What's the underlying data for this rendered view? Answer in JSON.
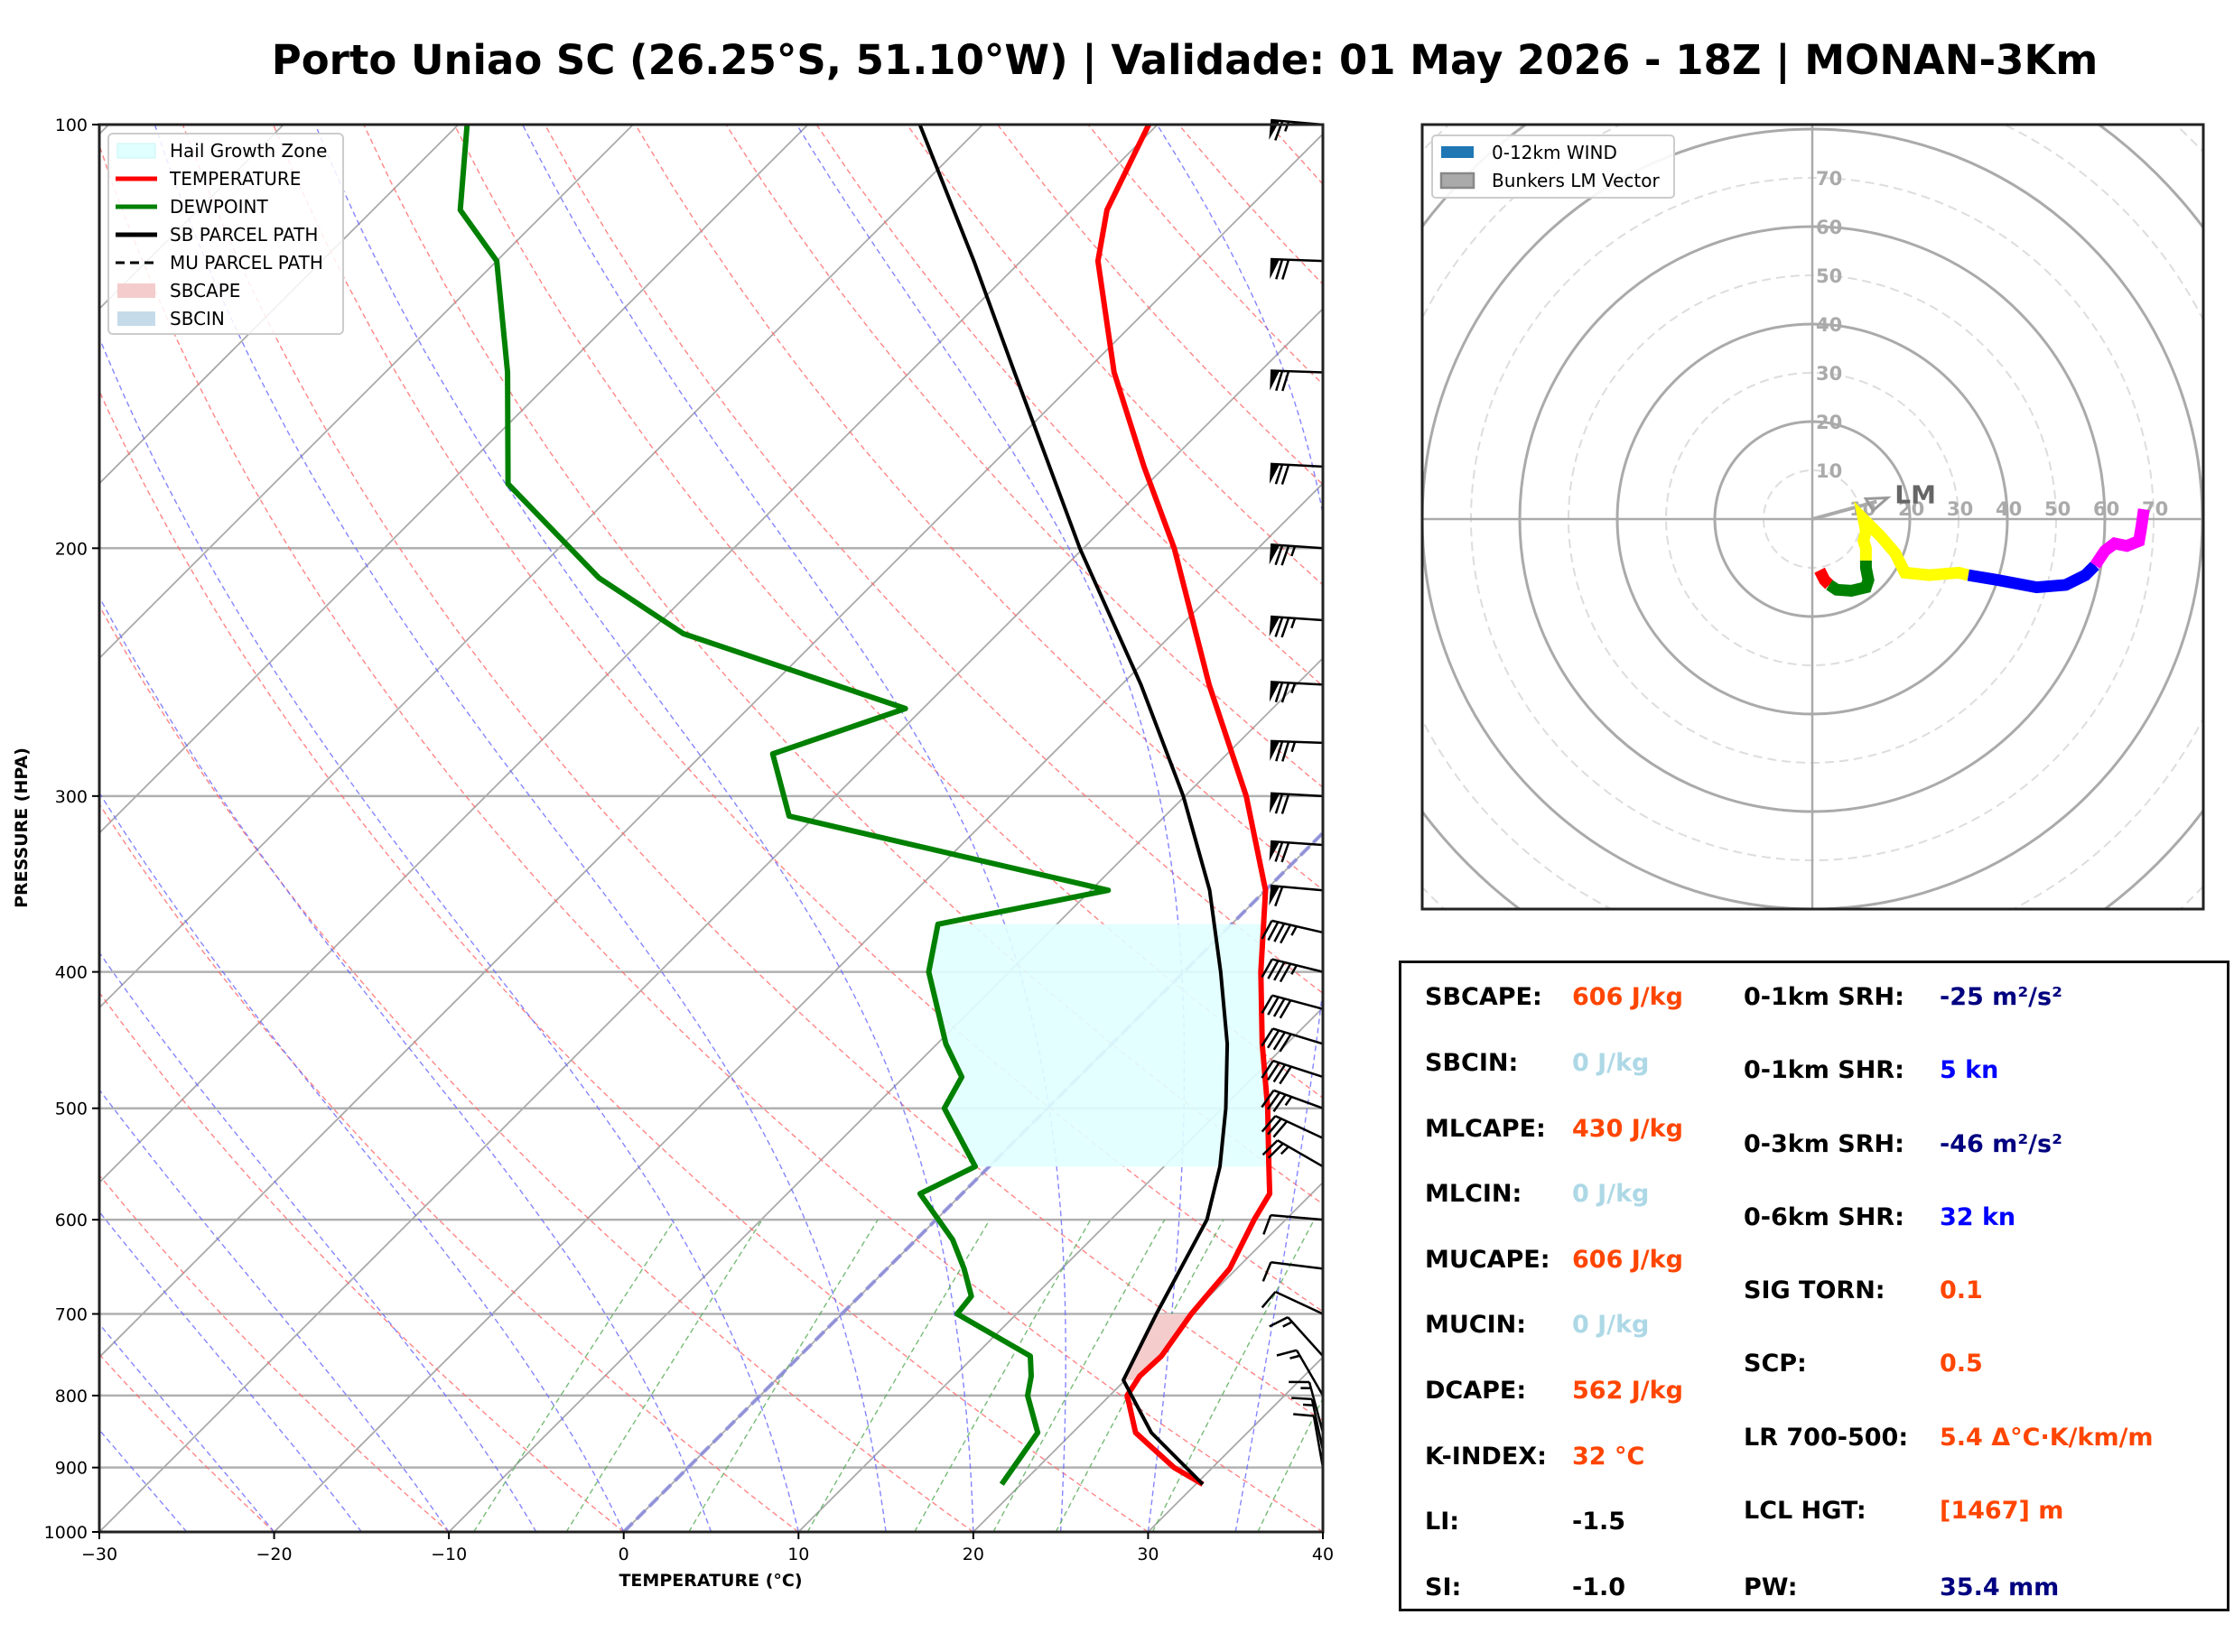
{
  "title": "Porto Uniao SC (26.25°S, 51.10°W) | Validade: 01 May 2026 - 18Z | MONAN-3Km",
  "colors": {
    "temperature": "#ff0000",
    "dewpoint": "#008000",
    "parcel": "#000000",
    "sbcape_fill": "#f4cccc",
    "sbcin_fill": "#c6dbea",
    "hail_zone": "#e0ffff",
    "dry_adiabat": "#ff6666",
    "moist_adiabat": "#6666ff",
    "mixing_ratio": "#55aa55",
    "isotherm": "#aaaaaa",
    "value_orange": "#ff4500",
    "value_lightblue": "#add8e6",
    "value_navy": "#000080",
    "value_blue": "#0000ff",
    "value_black": "#000000"
  },
  "chart_data": [
    {
      "type": "line",
      "name": "skew-t",
      "xlabel": "TEMPERATURE (°C)",
      "ylabel": "PRESSURE (HPA)",
      "xlim": [
        -30,
        40
      ],
      "ylim": [
        1000,
        100
      ],
      "yscale": "log",
      "xticks": [
        "−30",
        "−20",
        "−10",
        "0",
        "10",
        "20",
        "30",
        "40"
      ],
      "xtick_values": [
        -30,
        -20,
        -10,
        0,
        10,
        20,
        30,
        40
      ],
      "yticks": [
        "100",
        "200",
        "300",
        "400",
        "500",
        "600",
        "700",
        "800",
        "900",
        "1000"
      ],
      "ytick_values": [
        100,
        200,
        300,
        400,
        500,
        600,
        700,
        800,
        900,
        1000
      ],
      "grid": true,
      "legend_position": "top-left",
      "legend": [
        {
          "label": "Hail Growth Zone",
          "kind": "patch",
          "color_key": "hail_zone"
        },
        {
          "label": "TEMPERATURE",
          "kind": "line",
          "color_key": "temperature"
        },
        {
          "label": "DEWPOINT",
          "kind": "line",
          "color_key": "dewpoint"
        },
        {
          "label": "SB PARCEL PATH",
          "kind": "line",
          "color_key": "parcel"
        },
        {
          "label": "MU PARCEL PATH",
          "kind": "dashed",
          "color_key": "parcel"
        },
        {
          "label": "SBCAPE",
          "kind": "patch",
          "color_key": "sbcape_fill"
        },
        {
          "label": "SBCIN",
          "kind": "patch",
          "color_key": "sbcin_fill"
        }
      ],
      "series": [
        {
          "name": "TEMPERATURE",
          "points": [
            [
              925,
              30.4
            ],
            [
              900,
              27.8
            ],
            [
              850,
              23.6
            ],
            [
              800,
              21.0
            ],
            [
              775,
              20.6
            ],
            [
              750,
              20.7
            ],
            [
              700,
              20.0
            ],
            [
              650,
              19.6
            ],
            [
              600,
              18.2
            ],
            [
              575,
              17.6
            ],
            [
              550,
              16.0
            ],
            [
              500,
              12.6
            ],
            [
              450,
              8.6
            ],
            [
              400,
              4.4
            ],
            [
              350,
              0.0
            ],
            [
              300,
              -6.5
            ],
            [
              250,
              -15.0
            ],
            [
              200,
              -24.8
            ],
            [
              175,
              -31.2
            ],
            [
              150,
              -38.3
            ],
            [
              125,
              -45.6
            ],
            [
              115,
              -48.0
            ],
            [
              100,
              -50.5
            ]
          ]
        },
        {
          "name": "DEWPOINT",
          "points": [
            [
              925,
              18.9
            ],
            [
              850,
              18.0
            ],
            [
              800,
              15.3
            ],
            [
              775,
              14.4
            ],
            [
              750,
              13.2
            ],
            [
              700,
              6.6
            ],
            [
              680,
              6.4
            ],
            [
              650,
              4.4
            ],
            [
              620,
              2.1
            ],
            [
              575,
              -2.4
            ],
            [
              550,
              -0.8
            ],
            [
              500,
              -5.9
            ],
            [
              475,
              -6.7
            ],
            [
              450,
              -9.5
            ],
            [
              400,
              -14.6
            ],
            [
              370,
              -16.8
            ],
            [
              350,
              -9.0
            ],
            [
              310,
              -31.5
            ],
            [
              280,
              -36.0
            ],
            [
              260,
              -31.0
            ],
            [
              230,
              -48.0
            ],
            [
              210,
              -56.0
            ],
            [
              180,
              -66.6
            ],
            [
              150,
              -73.0
            ],
            [
              125,
              -80.0
            ],
            [
              115,
              -85.0
            ],
            [
              100,
              -89.5
            ]
          ]
        },
        {
          "name": "SB PARCEL PATH",
          "points": [
            [
              925,
              30.4
            ],
            [
              850,
              24.5
            ],
            [
              780,
              19.9
            ],
            [
              700,
              18.0
            ],
            [
              600,
              15.5
            ],
            [
              550,
              13.2
            ],
            [
              500,
              10.2
            ],
            [
              450,
              6.6
            ],
            [
              400,
              2.1
            ],
            [
              350,
              -3.2
            ],
            [
              300,
              -10.1
            ],
            [
              250,
              -18.9
            ],
            [
              200,
              -30.2
            ],
            [
              175,
              -36.6
            ],
            [
              150,
              -44.0
            ],
            [
              125,
              -52.7
            ],
            [
              100,
              -63.6
            ]
          ]
        }
      ],
      "hail_growth_zone": {
        "p_bottom": 550,
        "p_top": 370,
        "t_range": [
          -30,
          -10
        ]
      },
      "wind_barbs": [
        {
          "p": 100,
          "dir": 275,
          "speed_kn": 65
        },
        {
          "p": 125,
          "dir": 272,
          "speed_kn": 70
        },
        {
          "p": 150,
          "dir": 272,
          "speed_kn": 70
        },
        {
          "p": 175,
          "dir": 273,
          "speed_kn": 70
        },
        {
          "p": 200,
          "dir": 274,
          "speed_kn": 75
        },
        {
          "p": 225,
          "dir": 274,
          "speed_kn": 75
        },
        {
          "p": 250,
          "dir": 273,
          "speed_kn": 75
        },
        {
          "p": 275,
          "dir": 272,
          "speed_kn": 75
        },
        {
          "p": 300,
          "dir": 273,
          "speed_kn": 70
        },
        {
          "p": 325,
          "dir": 274,
          "speed_kn": 70
        },
        {
          "p": 350,
          "dir": 275,
          "speed_kn": 60
        },
        {
          "p": 375,
          "dir": 283,
          "speed_kn": 45
        },
        {
          "p": 400,
          "dir": 284,
          "speed_kn": 45
        },
        {
          "p": 425,
          "dir": 285,
          "speed_kn": 40
        },
        {
          "p": 450,
          "dir": 287,
          "speed_kn": 40
        },
        {
          "p": 475,
          "dir": 288,
          "speed_kn": 40
        },
        {
          "p": 500,
          "dir": 290,
          "speed_kn": 35
        },
        {
          "p": 525,
          "dir": 295,
          "speed_kn": 30
        },
        {
          "p": 550,
          "dir": 300,
          "speed_kn": 25
        },
        {
          "p": 600,
          "dir": 275,
          "speed_kn": 10
        },
        {
          "p": 650,
          "dir": 277,
          "speed_kn": 10
        },
        {
          "p": 700,
          "dir": 295,
          "speed_kn": 10
        },
        {
          "p": 750,
          "dir": 318,
          "speed_kn": 15
        },
        {
          "p": 800,
          "dir": 330,
          "speed_kn": 15
        },
        {
          "p": 850,
          "dir": 345,
          "speed_kn": 15
        },
        {
          "p": 875,
          "dir": 348,
          "speed_kn": 15
        },
        {
          "p": 900,
          "dir": 350,
          "speed_kn": 10
        }
      ]
    },
    {
      "type": "line",
      "name": "hodograph",
      "legend_position": "top-left",
      "legend": [
        {
          "label": "0-12km WIND",
          "color": "#1f77b4"
        },
        {
          "label": "Bunkers LM Vector",
          "color": "#aaaaaa"
        }
      ],
      "ring_labels": [
        "10",
        "20",
        "30",
        "40",
        "50",
        "60",
        "70"
      ],
      "ring_values": [
        10,
        20,
        30,
        40,
        50,
        60,
        70
      ],
      "xlim": [
        -80,
        80
      ],
      "ylim": [
        -80,
        80
      ],
      "bunkers_lm": {
        "label": "LM",
        "u": 11,
        "v": 3
      },
      "segments": [
        {
          "color": "#ff0000",
          "points": [
            [
              1.5,
              -10.5
            ],
            [
              2.5,
              -12.5
            ],
            [
              3.5,
              -13.5
            ]
          ]
        },
        {
          "color": "#008000",
          "points": [
            [
              3.5,
              -13.5
            ],
            [
              5.0,
              -14.5
            ],
            [
              8.0,
              -14.7
            ],
            [
              11.0,
              -14.0
            ],
            [
              11.5,
              -12.5
            ],
            [
              11.0,
              -10.0
            ],
            [
              11.0,
              -8.5
            ]
          ]
        },
        {
          "color": "#ffff00",
          "points": [
            [
              11.0,
              -8.5
            ],
            [
              11.0,
              -6.0
            ],
            [
              10.5,
              -4.5
            ],
            [
              11.0,
              -2.5
            ],
            [
              10.5,
              0.0
            ],
            [
              14.0,
              -3.5
            ],
            [
              17.0,
              -7.0
            ],
            [
              19.0,
              -11.0
            ],
            [
              24.0,
              -11.5
            ],
            [
              30.0,
              -11.0
            ],
            [
              32.0,
              -11.5
            ]
          ]
        },
        {
          "color": "#0000ff",
          "points": [
            [
              32.0,
              -11.5
            ],
            [
              38.0,
              -12.5
            ],
            [
              46.0,
              -14.0
            ],
            [
              52.0,
              -13.5
            ],
            [
              56.0,
              -11.5
            ],
            [
              58.0,
              -9.5
            ]
          ]
        },
        {
          "color": "#ff00ff",
          "points": [
            [
              58.0,
              -9.5
            ],
            [
              60.0,
              -6.5
            ],
            [
              62.0,
              -5.0
            ],
            [
              64.5,
              -5.5
            ],
            [
              67.0,
              -4.5
            ],
            [
              67.5,
              -1.5
            ],
            [
              68.0,
              2.0
            ]
          ]
        }
      ]
    }
  ],
  "stats": {
    "left": [
      {
        "label": "SBCAPE:",
        "value": "606 J/kg",
        "color_key": "value_orange"
      },
      {
        "label": "SBCIN:",
        "value": "0 J/kg",
        "color_key": "value_lightblue"
      },
      {
        "label": "MLCAPE:",
        "value": "430 J/kg",
        "color_key": "value_orange"
      },
      {
        "label": "MLCIN:",
        "value": "0 J/kg",
        "color_key": "value_lightblue"
      },
      {
        "label": "MUCAPE:",
        "value": "606 J/kg",
        "color_key": "value_orange"
      },
      {
        "label": "MUCIN:",
        "value": "0 J/kg",
        "color_key": "value_lightblue"
      },
      {
        "label": "DCAPE:",
        "value": "562 J/kg",
        "color_key": "value_orange"
      },
      {
        "label": "K-INDEX:",
        "value": "32 °C",
        "color_key": "value_orange"
      },
      {
        "label": "LI:",
        "value": "-1.5",
        "color_key": "value_black"
      },
      {
        "label": "SI:",
        "value": "-1.0",
        "color_key": "value_black"
      }
    ],
    "right": [
      {
        "label": "0-1km SRH:",
        "value": "-25 m²/s²",
        "color_key": "value_navy"
      },
      {
        "label": "0-1km SHR:",
        "value": "5 kn",
        "color_key": "value_blue"
      },
      {
        "label": "0-3km SRH:",
        "value": "-46 m²/s²",
        "color_key": "value_navy"
      },
      {
        "label": "0-6km SHR:",
        "value": "32 kn",
        "color_key": "value_blue"
      },
      {
        "label": "SIG TORN:",
        "value": "0.1",
        "color_key": "value_orange"
      },
      {
        "label": "SCP:",
        "value": "0.5",
        "color_key": "value_orange"
      },
      {
        "label": "LR 700-500:",
        "value": "5.4 Δ°C·K/km/m",
        "color_key": "value_orange"
      },
      {
        "label": "LCL HGT:",
        "value": "[1467] m",
        "color_key": "value_orange"
      },
      {
        "label": "PW:",
        "value": "35.4 mm",
        "color_key": "value_navy"
      }
    ]
  }
}
